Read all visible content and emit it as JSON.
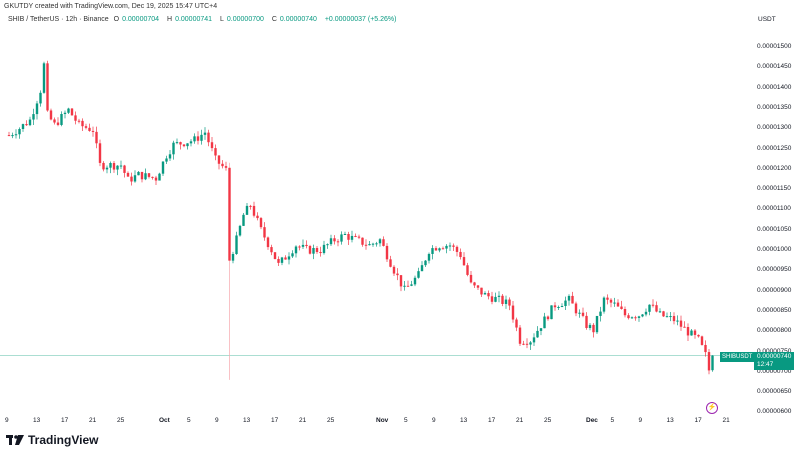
{
  "caption": "GKUTDY created with TradingView.com, Dec 19, 2025 15:47 UTC+4",
  "legend": {
    "symbol": "SHIB / TetherUS · 12h · Binance",
    "open_label": "O",
    "open": "0.00000704",
    "high_label": "H",
    "high": "0.00000741",
    "low_label": "L",
    "low": "0.00000700",
    "close_label": "C",
    "close": "0.00000740",
    "change": "+0.00000037 (+5.26%)"
  },
  "currency": "USDT",
  "last_price": {
    "symbol": "SHIBUSDT",
    "price": "0.00000740",
    "countdown": "12:47"
  },
  "brand": "TradingView",
  "colors": {
    "up": "#089981",
    "down": "#f23645",
    "line": "#089981",
    "event": "#9c27b0"
  },
  "chart_data": {
    "type": "candlestick",
    "title": "SHIB / TetherUS · 12h · Binance",
    "price_unit": "1e-8 USDT",
    "ylim": [
      600,
      1520
    ],
    "y_ticks": [
      "0.00001500",
      "0.00001450",
      "0.00001400",
      "0.00001350",
      "0.00001300",
      "0.00001250",
      "0.00001200",
      "0.00001150",
      "0.00001100",
      "0.00001050",
      "0.00001000",
      "0.00000950",
      "0.00000900",
      "0.00000850",
      "0.00000800",
      "0.00000750",
      "0.00000700",
      "0.00000650",
      "0.00000600"
    ],
    "x_ticks": [
      {
        "label": "9",
        "candle": 0
      },
      {
        "label": "13",
        "candle": 8
      },
      {
        "label": "17",
        "candle": 16
      },
      {
        "label": "21",
        "candle": 24
      },
      {
        "label": "25",
        "candle": 32
      },
      {
        "label": "Oct",
        "candle": 44
      },
      {
        "label": "5",
        "candle": 52
      },
      {
        "label": "9",
        "candle": 60
      },
      {
        "label": "13",
        "candle": 68
      },
      {
        "label": "17",
        "candle": 76
      },
      {
        "label": "21",
        "candle": 84
      },
      {
        "label": "25",
        "candle": 92
      },
      {
        "label": "Nov",
        "candle": 106
      },
      {
        "label": "5",
        "candle": 114
      },
      {
        "label": "9",
        "candle": 122
      },
      {
        "label": "13",
        "candle": 130
      },
      {
        "label": "17",
        "candle": 138
      },
      {
        "label": "21",
        "candle": 146
      },
      {
        "label": "25",
        "candle": 154
      },
      {
        "label": "Dec",
        "candle": 166
      },
      {
        "label": "5",
        "candle": 173
      },
      {
        "label": "9",
        "candle": 181
      },
      {
        "label": "13",
        "candle": 189
      },
      {
        "label": "17",
        "candle": 197
      },
      {
        "label": "21",
        "candle": 205
      }
    ],
    "close_keypoints": [
      [
        0,
        1283
      ],
      [
        3,
        1300
      ],
      [
        6,
        1320
      ],
      [
        9,
        1394
      ],
      [
        9,
        1394
      ],
      [
        10,
        1456
      ],
      [
        10,
        1456
      ],
      [
        11,
        1333
      ],
      [
        13,
        1308
      ],
      [
        17,
        1345
      ],
      [
        20,
        1308
      ],
      [
        24,
        1296
      ],
      [
        26,
        1209
      ],
      [
        32,
        1209
      ],
      [
        34,
        1172
      ],
      [
        37,
        1185
      ],
      [
        42,
        1177
      ],
      [
        45,
        1234
      ],
      [
        47,
        1259
      ],
      [
        53,
        1271
      ],
      [
        56,
        1290
      ],
      [
        59,
        1222
      ],
      [
        62,
        1197
      ],
      [
        63,
        975
      ],
      [
        65,
        1025
      ],
      [
        67,
        1086
      ],
      [
        69,
        1111
      ],
      [
        72,
        1049
      ],
      [
        75,
        1000
      ],
      [
        77,
        963
      ],
      [
        82,
        1012
      ],
      [
        85,
        1000
      ],
      [
        89,
        1000
      ],
      [
        93,
        1025
      ],
      [
        96,
        1037
      ],
      [
        99,
        1025
      ],
      [
        103,
        1012
      ],
      [
        106,
        1025
      ],
      [
        110,
        951
      ],
      [
        113,
        901
      ],
      [
        117,
        938
      ],
      [
        120,
        1000
      ],
      [
        123,
        1012
      ],
      [
        126,
        1012
      ],
      [
        129,
        988
      ],
      [
        132,
        914
      ],
      [
        136,
        889
      ],
      [
        140,
        877
      ],
      [
        143,
        865
      ],
      [
        146,
        778
      ],
      [
        149,
        778
      ],
      [
        153,
        828
      ],
      [
        156,
        865
      ],
      [
        160,
        877
      ],
      [
        165,
        815
      ],
      [
        167,
        803
      ],
      [
        170,
        877
      ],
      [
        173,
        865
      ],
      [
        176,
        840
      ],
      [
        180,
        840
      ],
      [
        183,
        865
      ],
      [
        186,
        840
      ],
      [
        190,
        828
      ],
      [
        195,
        791
      ],
      [
        197,
        778
      ],
      [
        199,
        741
      ],
      [
        200,
        704
      ],
      [
        201,
        740
      ]
    ],
    "crash_candle": {
      "candle": 63,
      "low": 680
    },
    "last_candle": {
      "open": 704,
      "high": 741,
      "low": 700,
      "close": 740
    }
  }
}
